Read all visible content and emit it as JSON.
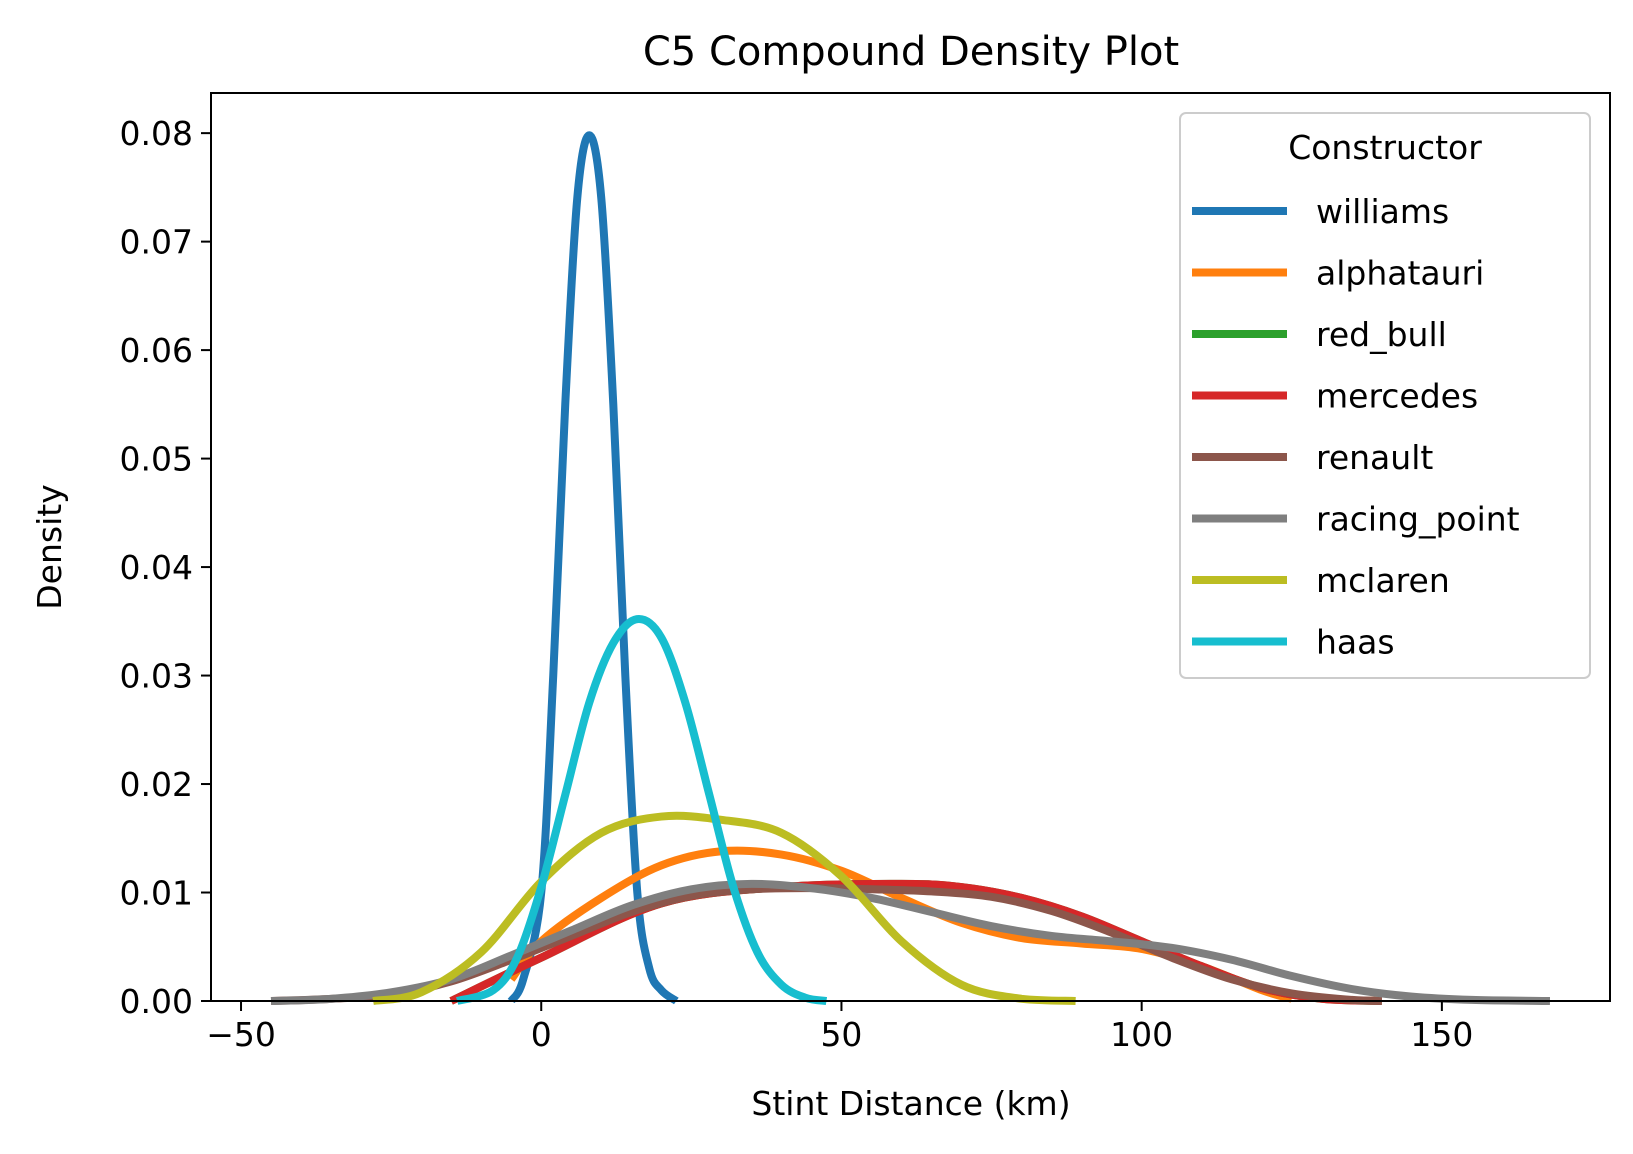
{
  "chart_data": {
    "type": "line",
    "title": "C5 Compound Density Plot",
    "xlabel": "Stint Distance (km)",
    "ylabel": "Density",
    "xlim": [
      -55,
      178
    ],
    "ylim": [
      0,
      0.0837
    ],
    "xticks": [
      -50,
      0,
      50,
      100,
      150
    ],
    "xtick_labels": [
      "−50",
      "0",
      "50",
      "100",
      "150"
    ],
    "yticks": [
      0,
      0.01,
      0.02,
      0.03,
      0.04,
      0.05,
      0.06,
      0.07,
      0.08
    ],
    "ytick_labels": [
      "0.00",
      "0.01",
      "0.02",
      "0.03",
      "0.04",
      "0.05",
      "0.06",
      "0.07",
      "0.08"
    ],
    "grid": false,
    "legend": {
      "title": "Constructor",
      "placement": "top-right"
    },
    "series": [
      {
        "name": "williams",
        "color": "#1f77b4",
        "x": [
          -5,
          -3,
          0,
          2,
          4,
          6,
          8,
          10,
          12,
          14,
          16,
          18,
          20,
          22.5
        ],
        "y": [
          0,
          0.002,
          0.01,
          0.03,
          0.055,
          0.074,
          0.0798,
          0.074,
          0.055,
          0.03,
          0.01,
          0.003,
          0.001,
          0
        ]
      },
      {
        "name": "alphatauri",
        "color": "#ff7f0e",
        "x": [
          -5,
          0,
          10,
          20,
          30,
          40,
          50,
          60,
          70,
          80,
          90,
          100,
          110,
          120,
          125
        ],
        "y": [
          0.002,
          0.0055,
          0.0095,
          0.0125,
          0.0138,
          0.0135,
          0.012,
          0.0095,
          0.0072,
          0.0058,
          0.0053,
          0.0048,
          0.0032,
          0.001,
          0.0002
        ]
      },
      {
        "name": "red_bull",
        "color": "#2ca02c",
        "x": [
          -15,
          0,
          20,
          40,
          60,
          70,
          80,
          90,
          100,
          110,
          120,
          130,
          140
        ],
        "y": [
          0,
          0.004,
          0.009,
          0.0105,
          0.0108,
          0.0105,
          0.0095,
          0.0078,
          0.0055,
          0.0032,
          0.0012,
          0.0002,
          0
        ]
      },
      {
        "name": "mercedes",
        "color": "#d62728",
        "x": [
          -15,
          0,
          20,
          40,
          60,
          70,
          80,
          90,
          100,
          110,
          120,
          130,
          140
        ],
        "y": [
          0,
          0.004,
          0.009,
          0.0105,
          0.0108,
          0.0105,
          0.0095,
          0.0078,
          0.0055,
          0.0032,
          0.0012,
          0.0002,
          0
        ]
      },
      {
        "name": "renault",
        "color": "#8c564b",
        "x": [
          -45,
          -35,
          -25,
          -15,
          -5,
          5,
          15,
          25,
          35,
          45,
          55,
          65,
          75,
          85,
          95,
          105,
          115,
          125,
          135,
          140
        ],
        "y": [
          0,
          0.0002,
          0.0006,
          0.0018,
          0.0038,
          0.006,
          0.0082,
          0.0097,
          0.0103,
          0.0104,
          0.0103,
          0.0101,
          0.0096,
          0.0083,
          0.0063,
          0.004,
          0.002,
          0.0007,
          0.0001,
          0
        ]
      },
      {
        "name": "racing_point",
        "color": "#7f7f7f",
        "x": [
          -45,
          -35,
          -25,
          -15,
          -5,
          5,
          15,
          25,
          35,
          45,
          55,
          65,
          75,
          85,
          95,
          105,
          115,
          125,
          135,
          145,
          155,
          168
        ],
        "y": [
          0,
          0.0002,
          0.0008,
          0.002,
          0.0042,
          0.0065,
          0.0088,
          0.0103,
          0.0108,
          0.0104,
          0.0095,
          0.0082,
          0.0069,
          0.006,
          0.0055,
          0.0049,
          0.0038,
          0.0023,
          0.0011,
          0.0004,
          0.0001,
          0
        ]
      },
      {
        "name": "mclaren",
        "color": "#bcbd22",
        "x": [
          -28,
          -20,
          -10,
          0,
          10,
          20,
          30,
          40,
          50,
          60,
          70,
          80,
          89
        ],
        "y": [
          0,
          0.0008,
          0.0045,
          0.011,
          0.0155,
          0.017,
          0.0167,
          0.0155,
          0.0115,
          0.0055,
          0.0015,
          0.0002,
          0
        ]
      },
      {
        "name": "haas",
        "color": "#17becf",
        "x": [
          -14,
          -8,
          -4,
          0,
          4,
          8,
          12,
          16,
          20,
          24,
          28,
          32,
          36,
          40,
          44,
          47.5
        ],
        "y": [
          0,
          0.001,
          0.004,
          0.0105,
          0.019,
          0.0275,
          0.033,
          0.0352,
          0.0335,
          0.0275,
          0.019,
          0.0105,
          0.0045,
          0.0015,
          0.0003,
          0
        ]
      }
    ]
  }
}
